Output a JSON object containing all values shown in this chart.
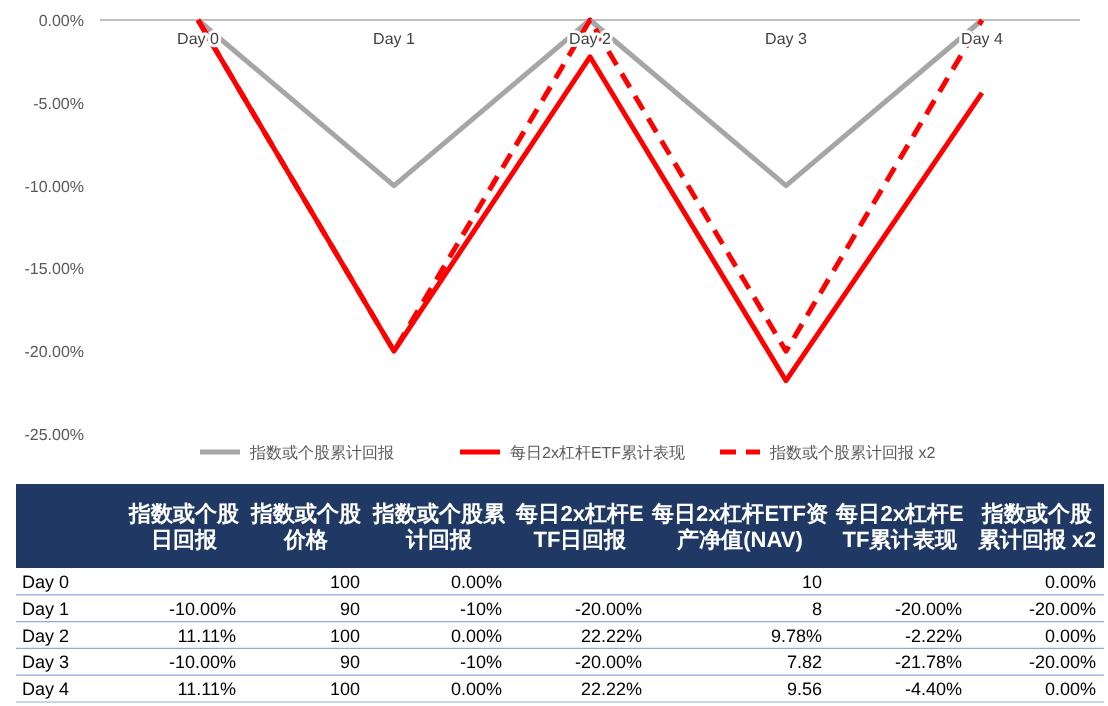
{
  "chart_data": [
    {
      "type": "line",
      "categories": [
        "Day 0",
        "Day 1",
        "Day 2",
        "Day 3",
        "Day 4"
      ],
      "series": [
        {
          "name": "指数或个股累计回报",
          "color": "#a6a6a6",
          "line_style": "solid",
          "values": [
            0,
            -10,
            0,
            -10,
            0
          ]
        },
        {
          "name": "每日2x杠杆ETF累计表现",
          "color": "#ff0000",
          "line_style": "solid",
          "values": [
            0,
            -20,
            -2.22,
            -21.78,
            -4.4
          ]
        },
        {
          "name": "指数或个股累计回报 x2",
          "color": "#ff0000",
          "line_style": "dashed",
          "values": [
            0,
            -20,
            0,
            -20,
            0
          ]
        }
      ],
      "ylim": [
        -25,
        0
      ],
      "yticks": [
        {
          "value": 0,
          "label": "0.00%"
        },
        {
          "value": -5,
          "label": "-5.00%"
        },
        {
          "value": -10,
          "label": "-10.00%"
        },
        {
          "value": -15,
          "label": "-15.00%"
        },
        {
          "value": -20,
          "label": "-20.00%"
        },
        {
          "value": -25,
          "label": "-25.00%"
        }
      ],
      "legend": "bottom"
    },
    {
      "type": "other",
      "categories": [
        "指数或个股日回报",
        "指数或个股价格",
        "指数或个股累计回报",
        "每日2x杠杆ETF日回报",
        "每日2x杠杆ETF资产净值(NAV)",
        "每日2x杠杆ETF累计表现",
        "指数或个股累计回报 x2"
      ],
      "y_categories": [
        "Day 0",
        "Day 1",
        "Day 2",
        "Day 3",
        "Day 4"
      ],
      "cell_labels": [
        [
          null,
          "100",
          "0.00%",
          null,
          "10",
          null,
          "0.00%"
        ],
        [
          "-10.00%",
          "90",
          "-10%",
          "-20.00%",
          "8",
          "-20.00%",
          "-20.00%"
        ],
        [
          "11.11%",
          "100",
          "0.00%",
          "22.22%",
          "9.78%",
          "-2.22%",
          "0.00%"
        ],
        [
          "-10.00%",
          "90",
          "-10%",
          "-20.00%",
          "7.82",
          "-21.78%",
          "-20.00%"
        ],
        [
          "11.11%",
          "100",
          "0.00%",
          "22.22%",
          "9.56",
          "-4.40%",
          "0.00%"
        ]
      ]
    }
  ]
}
